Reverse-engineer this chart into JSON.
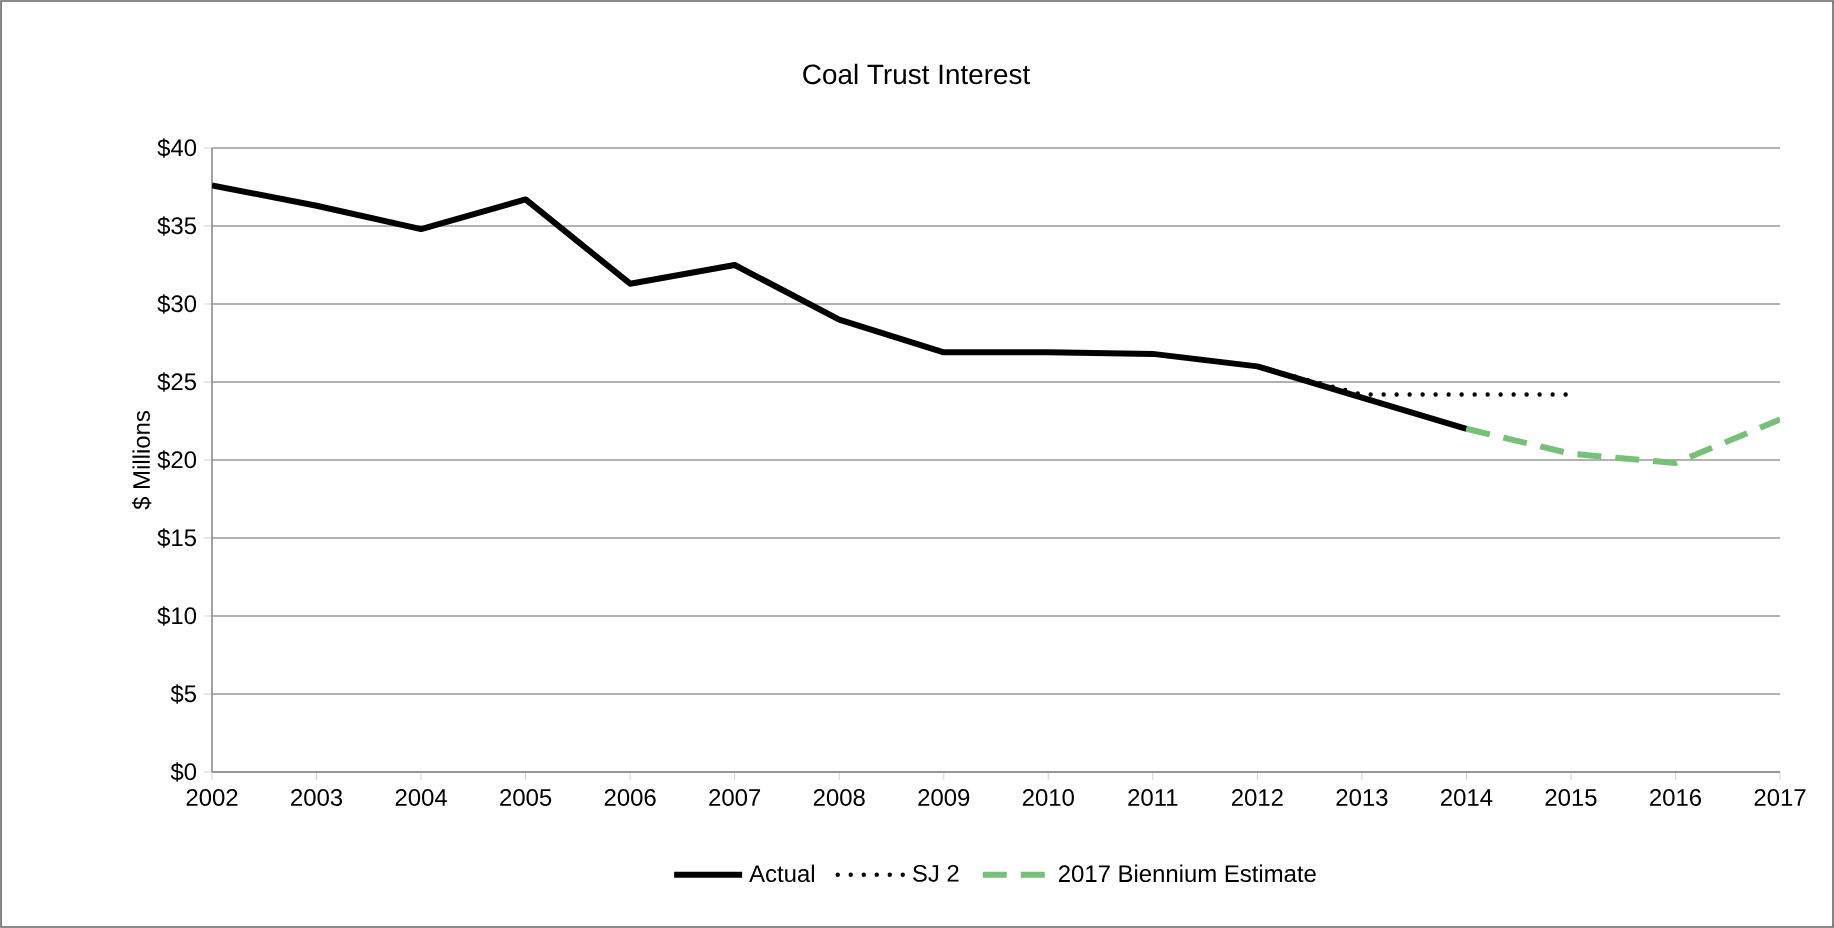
{
  "chart_data": {
    "type": "line",
    "title": "Coal Trust Interest",
    "ylabel": "$ Millions",
    "x": [
      2002,
      2003,
      2004,
      2005,
      2006,
      2007,
      2008,
      2009,
      2010,
      2011,
      2012,
      2013,
      2014,
      2015,
      2016,
      2017
    ],
    "series": [
      {
        "name": "Actual",
        "color": "#000000",
        "line_style": "solid",
        "values": [
          37.6,
          36.3,
          34.8,
          36.7,
          31.3,
          32.5,
          29.0,
          26.9,
          26.9,
          26.8,
          26.0,
          24.0,
          22.0,
          null,
          null,
          null
        ]
      },
      {
        "name": "SJ 2",
        "color": "#000000",
        "line_style": "dotted",
        "values": [
          null,
          null,
          null,
          null,
          null,
          null,
          null,
          null,
          null,
          null,
          26.0,
          24.2,
          24.2,
          24.2,
          null,
          null
        ]
      },
      {
        "name": "2017 Biennium Estimate",
        "color": "#77c077",
        "line_style": "dashed",
        "values": [
          null,
          null,
          null,
          null,
          null,
          null,
          null,
          null,
          null,
          null,
          null,
          null,
          22.0,
          20.4,
          19.8,
          22.6
        ]
      }
    ],
    "xlim": [
      2002,
      2017
    ],
    "xticks": [
      2002,
      2003,
      2004,
      2005,
      2006,
      2007,
      2008,
      2009,
      2010,
      2011,
      2012,
      2013,
      2014,
      2015,
      2016,
      2017
    ],
    "ylim": [
      0,
      40
    ],
    "yticks": [
      {
        "value": 0,
        "label": "$0"
      },
      {
        "value": 5,
        "label": "$5"
      },
      {
        "value": 10,
        "label": "$10"
      },
      {
        "value": 15,
        "label": "$15"
      },
      {
        "value": 20,
        "label": "$20"
      },
      {
        "value": 25,
        "label": "$25"
      },
      {
        "value": 30,
        "label": "$30"
      },
      {
        "value": 35,
        "label": "$35"
      },
      {
        "value": 40,
        "label": "$40"
      }
    ],
    "grid": "y",
    "legend": "bottom",
    "marker": "none"
  }
}
